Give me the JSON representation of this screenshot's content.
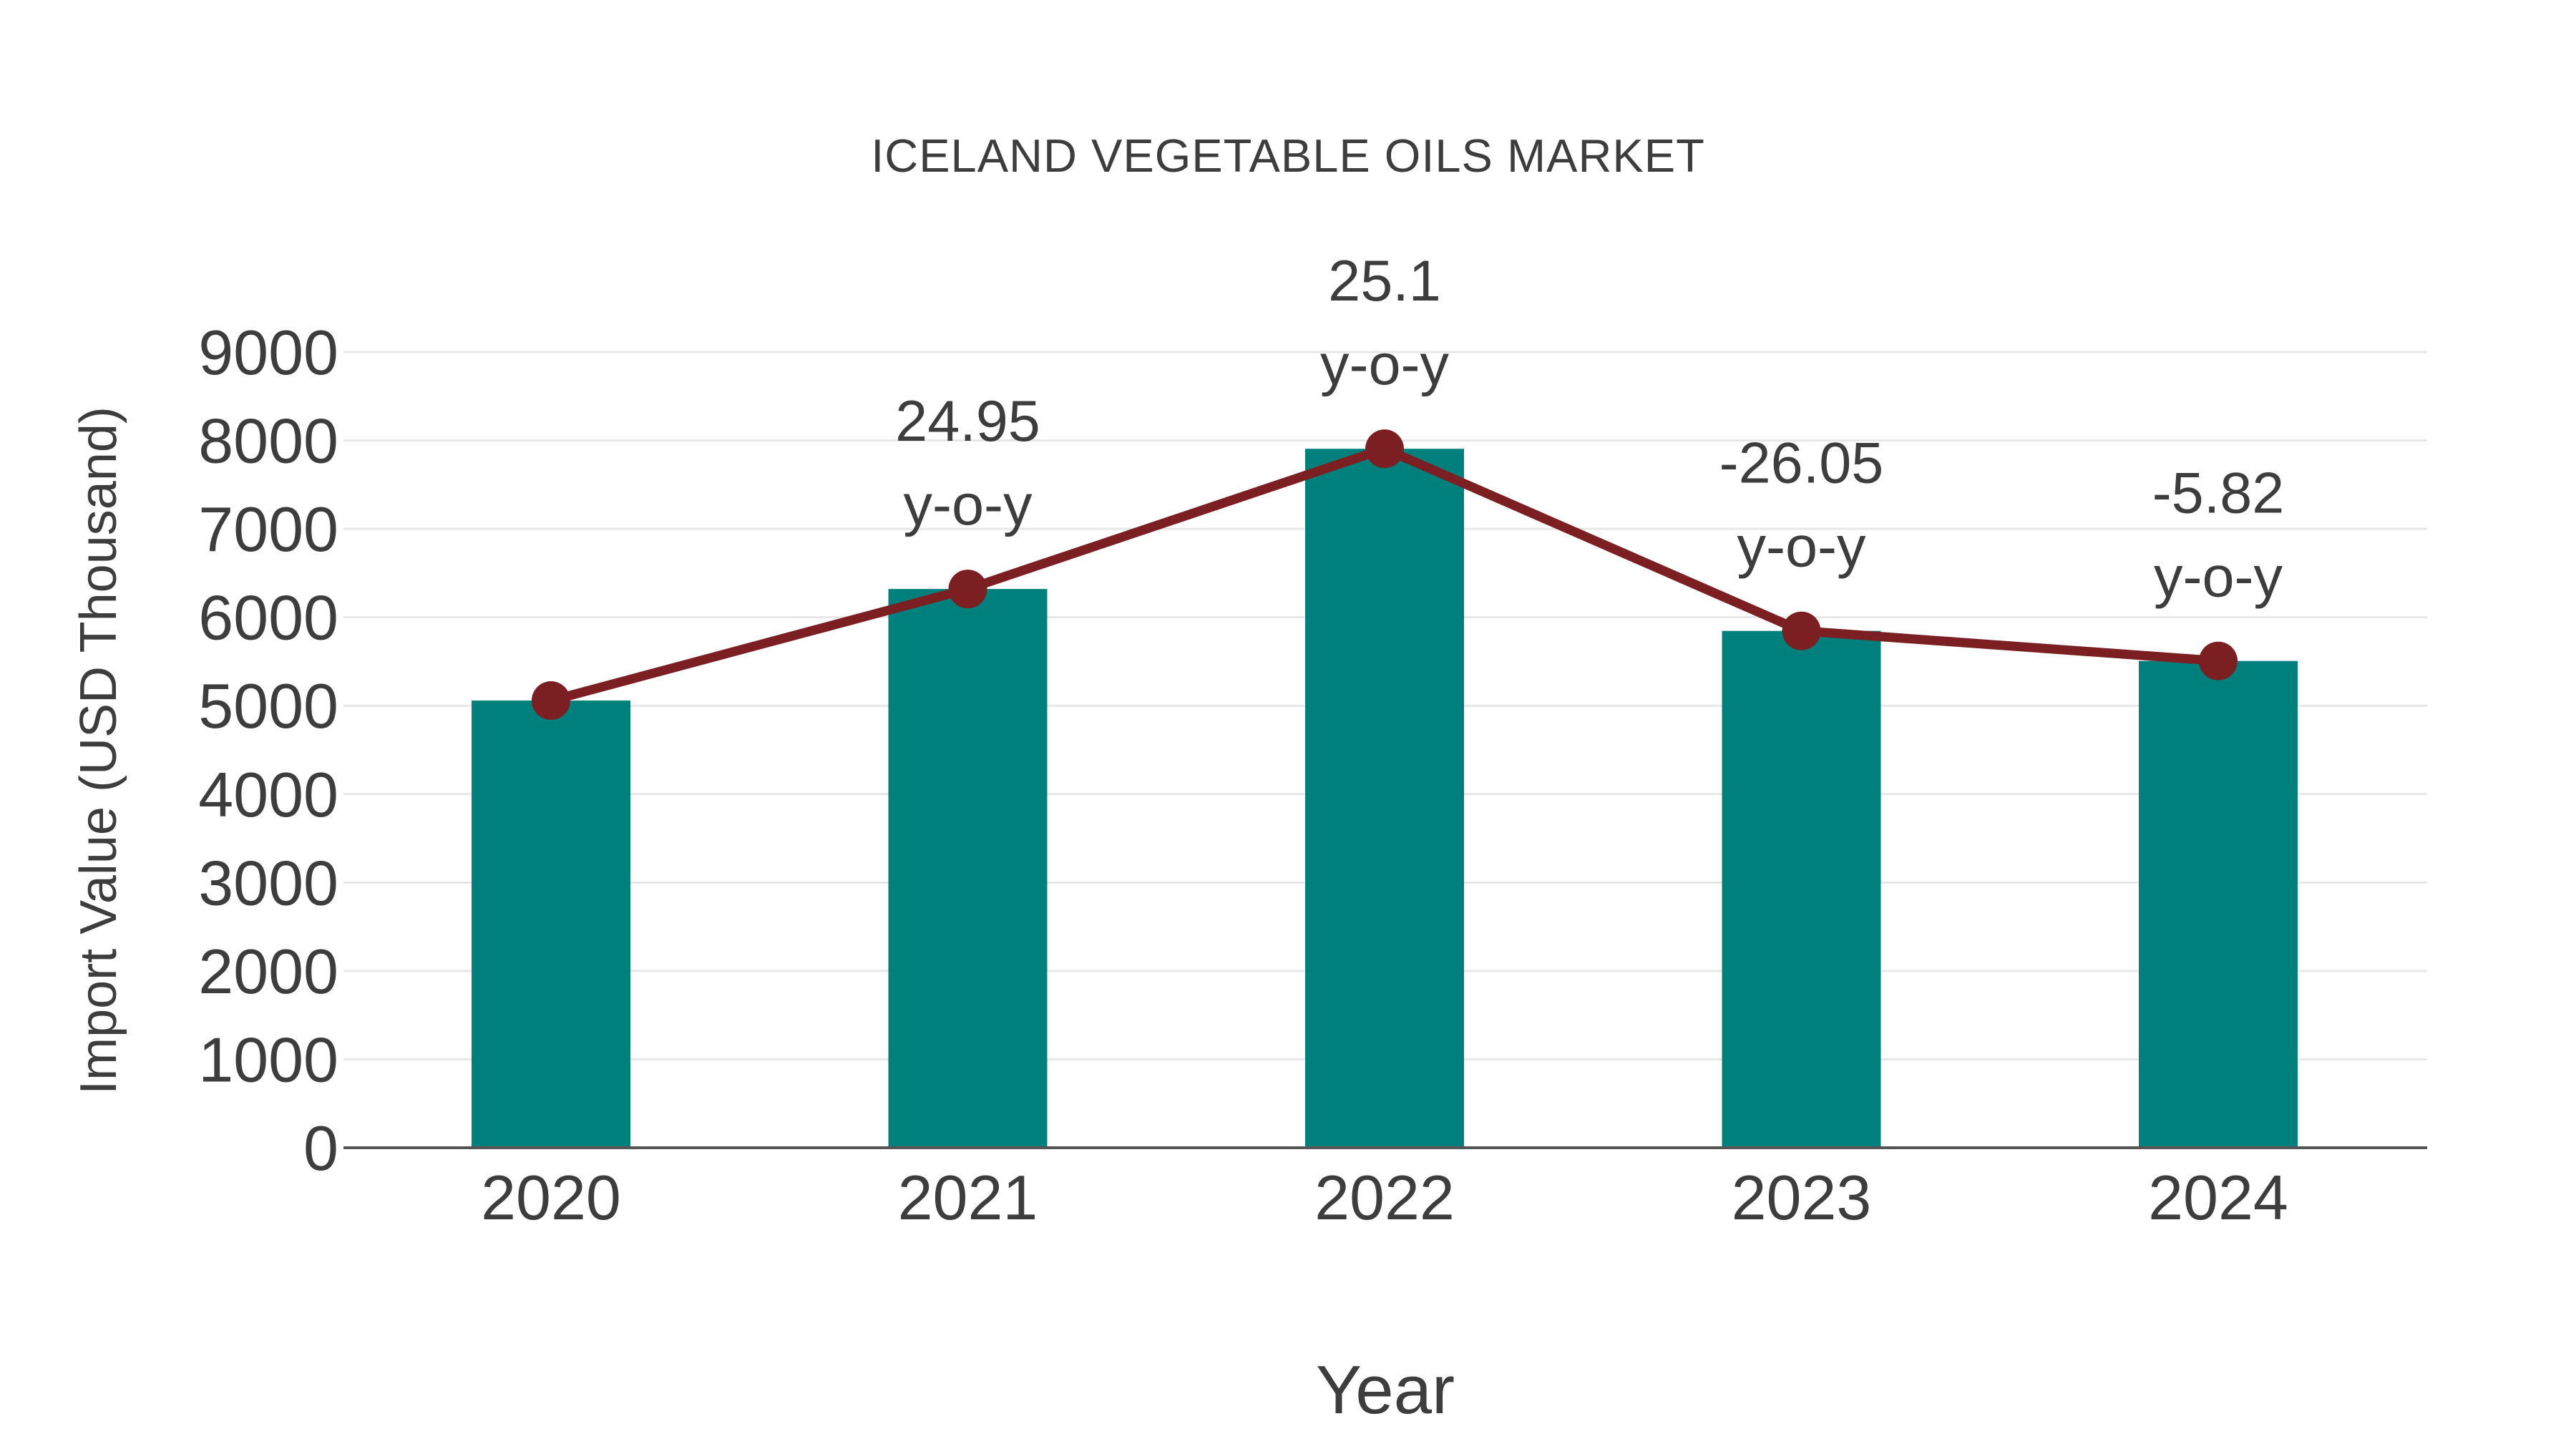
{
  "page": {
    "background_color": "#ffffff"
  },
  "chart_data": {
    "type": "bar",
    "title": "ICELAND VEGETABLE OILS MARKET",
    "xlabel": "Year",
    "ylabel": "Import Value (USD Thousand)",
    "categories": [
      "2020",
      "2021",
      "2022",
      "2023",
      "2024"
    ],
    "series": [
      {
        "name": "Import Value (USD Thousand)",
        "type": "bar",
        "color": "#00807d",
        "values": [
          5058,
          6320,
          7906,
          5846,
          5506
        ]
      },
      {
        "name": "y-o-y",
        "type": "line",
        "color": "#7c1f23",
        "values": [
          5058,
          6320,
          7906,
          5846,
          5506
        ],
        "yoy_percent": [
          null,
          24.95,
          25.1,
          -26.05,
          -5.82
        ]
      }
    ],
    "point_labels": [
      {
        "category": "2021",
        "value_text": "24.95",
        "suffix_text": "y-o-y"
      },
      {
        "category": "2022",
        "value_text": "25.1",
        "suffix_text": "y-o-y"
      },
      {
        "category": "2023",
        "value_text": "-26.05",
        "suffix_text": "y-o-y"
      },
      {
        "category": "2024",
        "value_text": "-5.82",
        "suffix_text": "y-o-y"
      }
    ],
    "ylim": [
      0,
      9000
    ],
    "ytick_step": 1000,
    "ytick_labels": [
      "0",
      "1000",
      "2000",
      "3000",
      "4000",
      "5000",
      "6000",
      "7000",
      "8000",
      "9000"
    ],
    "grid": "horizontal",
    "legend_position": "none",
    "colors": {
      "bar": "#00807d",
      "line": "#7c1f23",
      "marker": "#7c1f23",
      "gridline": "#e7e7e7",
      "axis_line": "#555555",
      "text": "#3d3d3d"
    }
  }
}
